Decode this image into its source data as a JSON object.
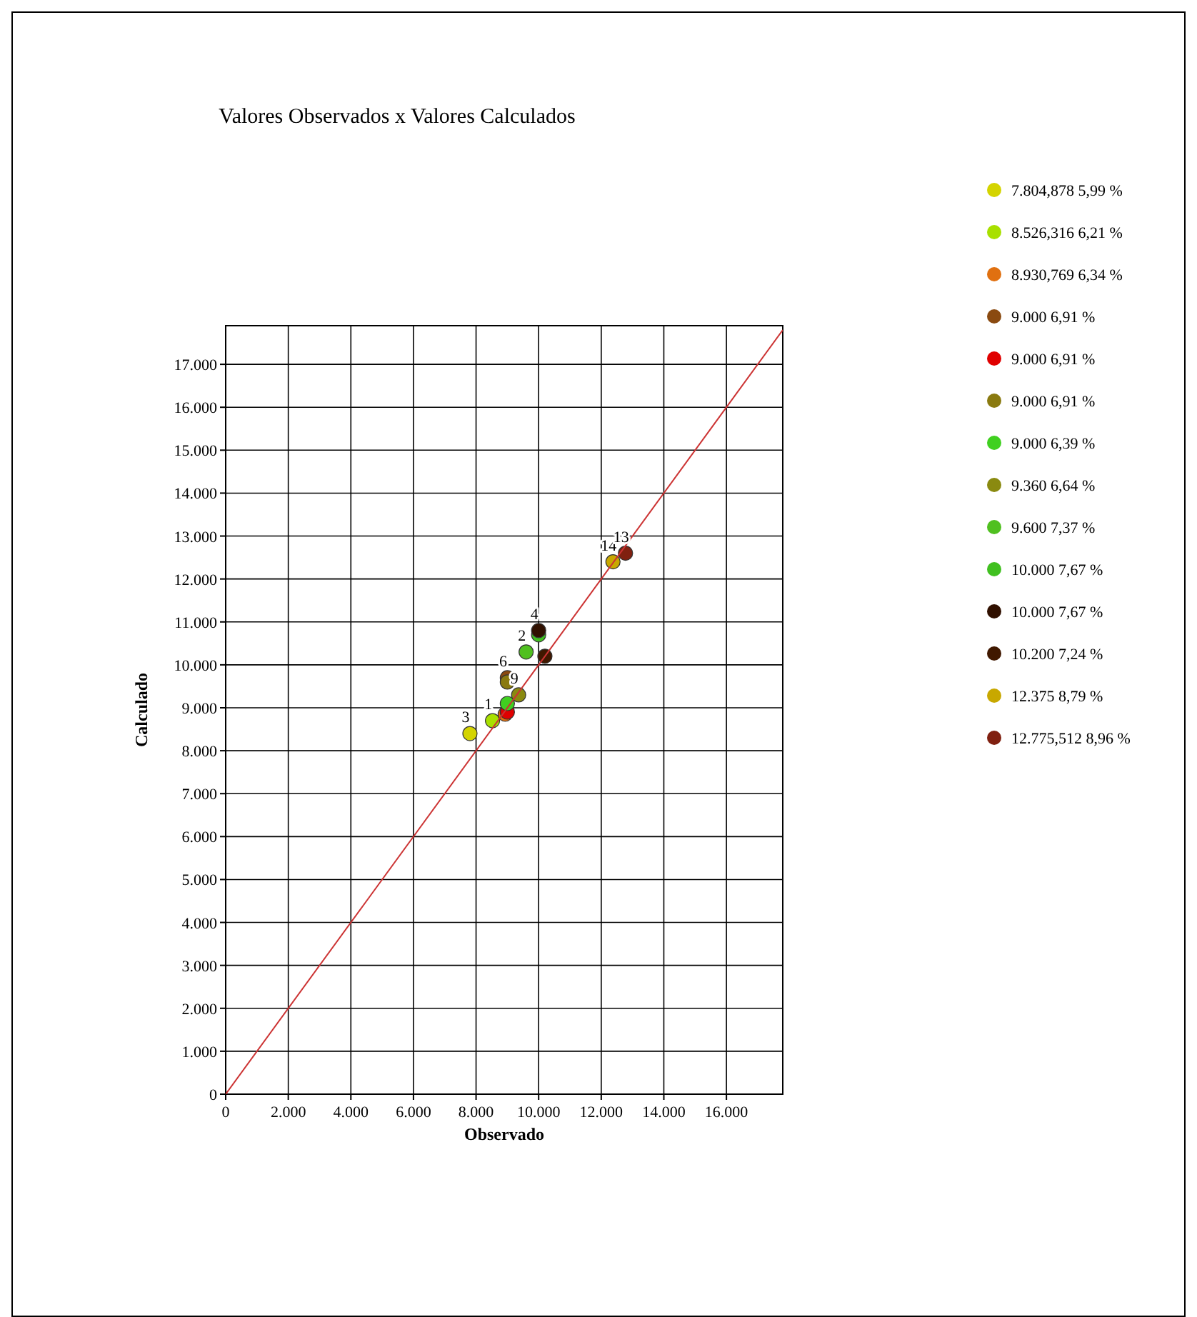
{
  "chart_data": {
    "type": "scatter",
    "title": "Valores Observados x Valores Calculados",
    "xlabel": "Observado",
    "ylabel": "Calculado",
    "xlim": [
      0,
      17800
    ],
    "ylim": [
      0,
      17900
    ],
    "xticks": [
      0,
      {
        "value": 2000,
        "label": "2.000"
      },
      {
        "value": 4000,
        "label": "4.000"
      },
      {
        "value": 6000,
        "label": "6.000"
      },
      {
        "value": 8000,
        "label": "8.000"
      },
      {
        "value": 10000,
        "label": "10.000"
      },
      {
        "value": 12000,
        "label": "12.000"
      },
      {
        "value": 14000,
        "label": "14.000"
      },
      {
        "value": 16000,
        "label": "16.000"
      }
    ],
    "yticks": [
      0,
      {
        "value": 1000,
        "label": "1.000"
      },
      {
        "value": 2000,
        "label": "2.000"
      },
      {
        "value": 3000,
        "label": "3.000"
      },
      {
        "value": 4000,
        "label": "4.000"
      },
      {
        "value": 5000,
        "label": "5.000"
      },
      {
        "value": 6000,
        "label": "6.000"
      },
      {
        "value": 7000,
        "label": "7.000"
      },
      {
        "value": 8000,
        "label": "8.000"
      },
      {
        "value": 9000,
        "label": "9.000"
      },
      {
        "value": 10000,
        "label": "10.000"
      },
      {
        "value": 11000,
        "label": "11.000"
      },
      {
        "value": 12000,
        "label": "12.000"
      },
      {
        "value": 13000,
        "label": "13.000"
      },
      {
        "value": 14000,
        "label": "14.000"
      },
      {
        "value": 15000,
        "label": "15.000"
      },
      {
        "value": 16000,
        "label": "16.000"
      },
      {
        "value": 17000,
        "label": "17.000"
      }
    ],
    "grid": true,
    "legend": "right",
    "marker": "circle",
    "series": [
      {
        "name": "7.804,878 5,99 %",
        "color": "#d4d400",
        "x": [
          7804.878
        ],
        "values": [
          8400
        ]
      },
      {
        "name": "8.526,316 6,21 %",
        "color": "#a8e000",
        "x": [
          8526.316
        ],
        "values": [
          8700
        ]
      },
      {
        "name": "8.930,769 6,34 %",
        "color": "#e07010",
        "x": [
          8930.769
        ],
        "values": [
          8850
        ]
      },
      {
        "name": "9.000 6,91 %",
        "color": "#8a4a10",
        "x": [
          9000
        ],
        "values": [
          9700
        ]
      },
      {
        "name": "9.000 6,91 %",
        "color": "#e00000",
        "x": [
          9000
        ],
        "values": [
          8900
        ]
      },
      {
        "name": "9.000 6,91 %",
        "color": "#8a7a10",
        "x": [
          9000
        ],
        "values": [
          9600
        ]
      },
      {
        "name": "9.000 6,39 %",
        "color": "#40d020",
        "x": [
          9000
        ],
        "values": [
          9100
        ]
      },
      {
        "name": "9.360 6,64 %",
        "color": "#8a8a10",
        "x": [
          9360
        ],
        "values": [
          9300
        ]
      },
      {
        "name": "9.600 7,37 %",
        "color": "#50c020",
        "x": [
          9600
        ],
        "values": [
          10300
        ]
      },
      {
        "name": "10.000 7,67 %",
        "color": "#40c020",
        "x": [
          10000
        ],
        "values": [
          10700
        ]
      },
      {
        "name": "10.000 7,67 %",
        "color": "#301000",
        "x": [
          10000
        ],
        "values": [
          10800
        ]
      },
      {
        "name": "10.200 7,24 %",
        "color": "#401800",
        "x": [
          10200
        ],
        "values": [
          10200
        ]
      },
      {
        "name": "12.375 8,79 %",
        "color": "#c8a800",
        "x": [
          12375
        ],
        "values": [
          12400
        ]
      },
      {
        "name": "12.775,512 8,96 %",
        "color": "#802010",
        "x": [
          12775.512
        ],
        "values": [
          12600
        ]
      },
      {
        "type": "line",
        "color": "#cc3333",
        "line_style": "solid",
        "marker": "none",
        "x": [
          0,
          17800
        ],
        "values": [
          0,
          17800
        ]
      }
    ],
    "annotations": [
      {
        "text": "3",
        "x": 7804.878,
        "y": 8400
      },
      {
        "text": "1",
        "x": 8526.316,
        "y": 8700
      },
      {
        "text": "6",
        "x": 9000,
        "y": 9700
      },
      {
        "text": "9",
        "x": 9360,
        "y": 9300
      },
      {
        "text": "2",
        "x": 9600,
        "y": 10300
      },
      {
        "text": "4",
        "x": 10000,
        "y": 10800
      },
      {
        "text": "14",
        "x": 12375,
        "y": 12400
      },
      {
        "text": "13",
        "x": 12775.512,
        "y": 12600
      }
    ]
  }
}
